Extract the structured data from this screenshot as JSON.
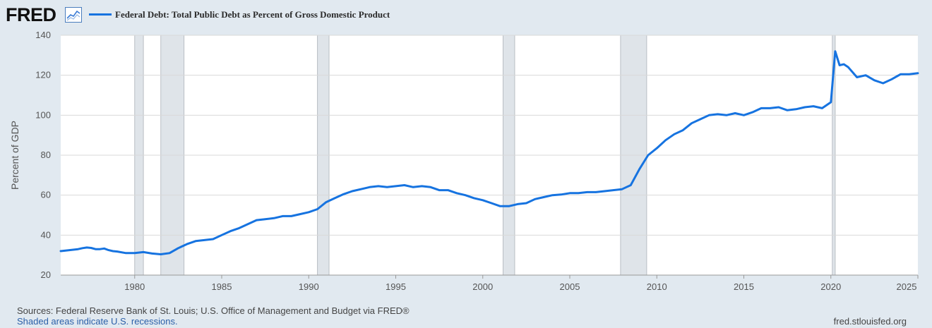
{
  "header": {
    "logo": "FRED",
    "logo_icon": "trend-line-icon",
    "series_label": "Federal Debt: Total Public Debt as Percent of Gross Domestic Product"
  },
  "colors": {
    "line": "#1673e0",
    "recession": "#dfe4e9",
    "background": "#e1e9f0",
    "plot": "#ffffff"
  },
  "chart_data": {
    "type": "line",
    "title": "Federal Debt: Total Public Debt as Percent of Gross Domestic Product",
    "xlabel": "",
    "ylabel": "Percent of GDP",
    "xlim": [
      "1975-10-01",
      "2025-01-01"
    ],
    "ylim": [
      20,
      140
    ],
    "yticks": [
      20,
      40,
      60,
      80,
      100,
      120,
      140
    ],
    "xticks": [
      1980,
      1985,
      1990,
      1995,
      2000,
      2005,
      2010,
      2015,
      2020,
      2025
    ],
    "grid": true,
    "legend": "top-left",
    "recessions": [
      [
        "1980-01-01",
        "1980-07-01"
      ],
      [
        "1981-07-01",
        "1982-11-01"
      ],
      [
        "1990-07-01",
        "1991-03-01"
      ],
      [
        "2001-03-01",
        "2001-11-01"
      ],
      [
        "2007-12-01",
        "2009-06-01"
      ],
      [
        "2020-02-01",
        "2020-04-01"
      ]
    ],
    "series": [
      {
        "name": "Federal Debt: Total Public Debt as Percent of Gross Domestic Product",
        "x": [
          "1975-10-01",
          "1976-04-01",
          "1976-10-01",
          "1977-01-01",
          "1977-04-01",
          "1977-07-01",
          "1977-10-01",
          "1978-01-01",
          "1978-04-01",
          "1978-07-01",
          "1978-10-01",
          "1979-01-01",
          "1979-07-01",
          "1980-01-01",
          "1980-07-01",
          "1981-01-01",
          "1981-07-01",
          "1982-01-01",
          "1982-07-01",
          "1983-01-01",
          "1983-07-01",
          "1984-01-01",
          "1984-07-01",
          "1985-01-01",
          "1985-07-01",
          "1986-01-01",
          "1986-07-01",
          "1987-01-01",
          "1987-07-01",
          "1988-01-01",
          "1988-07-01",
          "1989-01-01",
          "1989-07-01",
          "1990-01-01",
          "1990-07-01",
          "1991-01-01",
          "1991-07-01",
          "1992-01-01",
          "1992-07-01",
          "1993-01-01",
          "1993-07-01",
          "1994-01-01",
          "1994-07-01",
          "1995-01-01",
          "1995-07-01",
          "1996-01-01",
          "1996-07-01",
          "1997-01-01",
          "1997-07-01",
          "1998-01-01",
          "1998-07-01",
          "1999-01-01",
          "1999-07-01",
          "2000-01-01",
          "2000-07-01",
          "2001-01-01",
          "2001-07-01",
          "2002-01-01",
          "2002-07-01",
          "2003-01-01",
          "2003-07-01",
          "2004-01-01",
          "2004-07-01",
          "2005-01-01",
          "2005-07-01",
          "2006-01-01",
          "2006-07-01",
          "2007-01-01",
          "2007-07-01",
          "2008-01-01",
          "2008-07-01",
          "2009-01-01",
          "2009-07-01",
          "2010-01-01",
          "2010-07-01",
          "2011-01-01",
          "2011-07-01",
          "2012-01-01",
          "2012-07-01",
          "2013-01-01",
          "2013-07-01",
          "2014-01-01",
          "2014-07-01",
          "2015-01-01",
          "2015-07-01",
          "2016-01-01",
          "2016-07-01",
          "2017-01-01",
          "2017-07-01",
          "2018-01-01",
          "2018-07-01",
          "2019-01-01",
          "2019-07-01",
          "2020-01-01",
          "2020-04-01",
          "2020-07-01",
          "2020-10-01",
          "2021-01-01",
          "2021-07-01",
          "2022-01-01",
          "2022-07-01",
          "2023-01-01",
          "2023-07-01",
          "2024-01-01",
          "2024-07-01",
          "2025-01-01"
        ],
        "values": [
          32,
          32.5,
          33,
          33.5,
          33.8,
          33.6,
          33,
          33,
          33.3,
          32.5,
          32,
          31.8,
          31,
          31,
          31.5,
          30.8,
          30.4,
          31,
          33.5,
          35.5,
          37,
          37.5,
          38,
          40,
          42,
          43.5,
          45.5,
          47.5,
          48,
          48.5,
          49.5,
          49.5,
          50.5,
          51.5,
          53,
          56.5,
          58.5,
          60.5,
          62,
          63,
          64,
          64.5,
          64,
          64.5,
          65,
          64,
          64.5,
          64,
          62.5,
          62.5,
          61,
          60,
          58.5,
          57.5,
          56,
          54.5,
          54.5,
          55.5,
          56,
          58,
          59,
          60,
          60.3,
          61,
          61,
          61.5,
          61.5,
          62,
          62.5,
          63,
          65,
          73,
          80,
          83.5,
          87.5,
          90.5,
          92.5,
          96,
          98,
          100,
          100.5,
          100,
          101,
          100,
          101.5,
          103.5,
          103.5,
          104,
          102.5,
          103,
          104,
          104.5,
          103.5,
          106.5,
          132,
          125,
          125.5,
          124,
          119,
          120,
          117.5,
          116,
          118,
          120.5,
          120.5,
          121
        ]
      }
    ]
  },
  "footer": {
    "source": "Sources: Federal Reserve Bank of St. Louis; U.S. Office of Management and Budget via FRED®",
    "note": "Shaded areas indicate U.S. recessions.",
    "site": "fred.stlouisfed.org"
  }
}
